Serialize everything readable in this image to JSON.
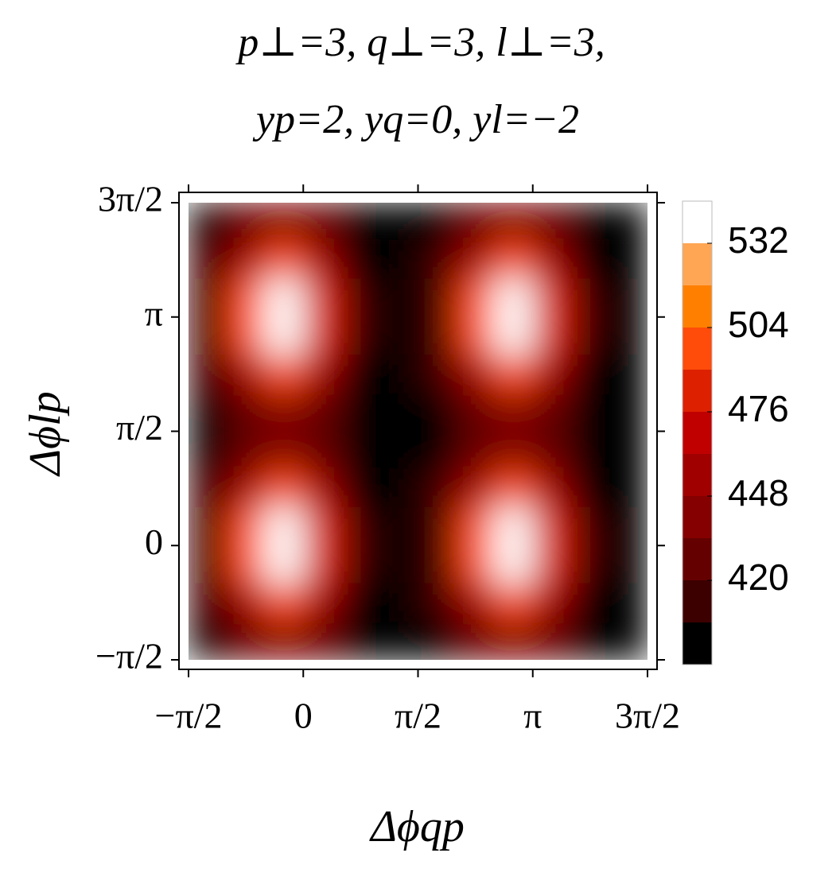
{
  "chart_data": {
    "type": "heatmap",
    "title": [
      "p⊥=3,   q⊥=3,   l⊥=3,",
      "yp=2,   yq=0,   yl=−2"
    ],
    "x_label": "Δϕqp",
    "y_label": "Δϕlp",
    "xlim": [
      -1.5708,
      4.7124
    ],
    "ylim": [
      -1.5708,
      4.7124
    ],
    "xticks": [
      {
        "value": -1.5708,
        "label": "−π/2"
      },
      {
        "value": 0,
        "label": "0"
      },
      {
        "value": 1.5708,
        "label": "π/2"
      },
      {
        "value": 3.1416,
        "label": "π"
      },
      {
        "value": 4.7124,
        "label": "3π/2"
      }
    ],
    "yticks": [
      {
        "value": -1.5708,
        "label": "−π/2"
      },
      {
        "value": 0,
        "label": "0"
      },
      {
        "value": 1.5708,
        "label": "π/2"
      },
      {
        "value": 3.1416,
        "label": "π"
      },
      {
        "value": 4.7124,
        "label": "3π/2"
      }
    ],
    "z": [
      [
        400,
        428,
        444,
        424,
        397,
        392,
        400,
        428,
        444,
        424,
        397,
        392
      ],
      [
        407,
        461,
        492,
        453,
        402,
        392,
        407,
        461,
        492,
        453,
        402,
        392
      ],
      [
        414,
        494,
        540,
        482,
        407,
        392,
        414,
        494,
        540,
        482,
        407,
        392
      ],
      [
        414,
        494,
        540,
        482,
        407,
        392,
        414,
        494,
        540,
        482,
        407,
        392
      ],
      [
        407,
        461,
        492,
        453,
        402,
        392,
        407,
        461,
        492,
        453,
        402,
        392
      ],
      [
        400,
        428,
        444,
        424,
        397,
        392,
        400,
        428,
        444,
        424,
        397,
        392
      ],
      [
        400,
        428,
        444,
        424,
        397,
        392,
        400,
        428,
        444,
        424,
        397,
        392
      ],
      [
        407,
        461,
        492,
        453,
        402,
        392,
        407,
        461,
        492,
        453,
        402,
        392
      ],
      [
        414,
        494,
        540,
        482,
        407,
        392,
        414,
        494,
        540,
        482,
        407,
        392
      ],
      [
        414,
        494,
        540,
        482,
        407,
        392,
        414,
        494,
        540,
        482,
        407,
        392
      ],
      [
        407,
        461,
        492,
        453,
        402,
        392,
        407,
        461,
        492,
        453,
        402,
        392
      ],
      [
        400,
        428,
        444,
        424,
        397,
        392,
        400,
        428,
        444,
        424,
        397,
        392
      ]
    ],
    "colorbar": {
      "levels": [
        392,
        406,
        420,
        434,
        448,
        462,
        476,
        490,
        504,
        518,
        532,
        546
      ],
      "colors": [
        "#000000",
        "#3c0000",
        "#650000",
        "#850000",
        "#a00000",
        "#c00000",
        "#dd2000",
        "#ff4c0a",
        "#ff8000",
        "#ffa655",
        "#ffffff"
      ],
      "ticks": [
        420,
        448,
        476,
        504,
        532
      ]
    }
  }
}
